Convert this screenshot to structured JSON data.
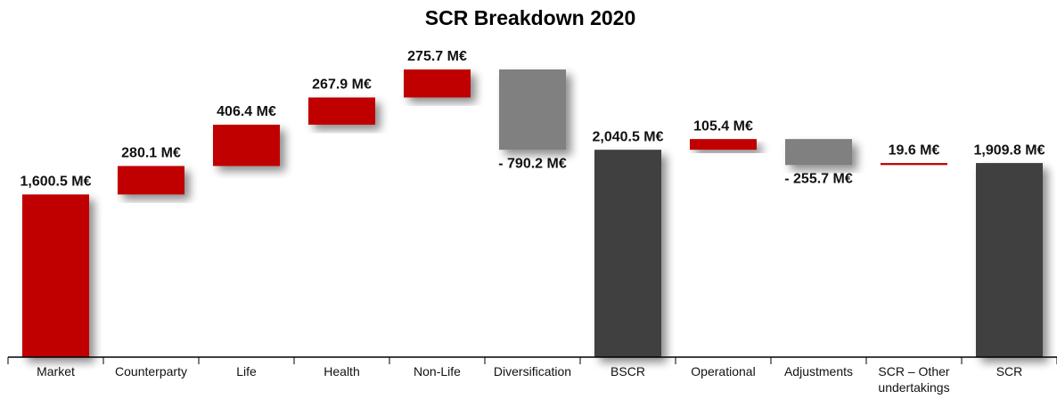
{
  "chart_data": {
    "type": "waterfall",
    "title": "SCR Breakdown 2020",
    "categories": [
      "Market",
      "Counterparty",
      "Life",
      "Health",
      "Non-Life",
      "Diversification",
      "BSCR",
      "Operational",
      "Adjustments",
      "SCR – Other undertakings",
      "SCR"
    ],
    "values": [
      1600.5,
      280.1,
      406.4,
      267.9,
      275.7,
      -790.2,
      2040.5,
      105.4,
      -255.7,
      19.6,
      1909.8
    ],
    "value_labels": [
      "1,600.5 M€",
      "280.1 M€",
      "406.4 M€",
      "267.9 M€",
      "275.7 M€",
      "- 790.2 M€",
      "2,040.5 M€",
      "105.4 M€",
      "- 255.7 M€",
      "19.6 M€",
      "1,909.8 M€"
    ],
    "measure": [
      "relative",
      "relative",
      "relative",
      "relative",
      "relative",
      "relative",
      "total",
      "relative",
      "relative",
      "relative",
      "total"
    ],
    "colors": [
      "#c00000",
      "#c00000",
      "#c00000",
      "#c00000",
      "#c00000",
      "#808080",
      "#404040",
      "#c00000",
      "#808080",
      "#c00000",
      "#404040"
    ]
  }
}
